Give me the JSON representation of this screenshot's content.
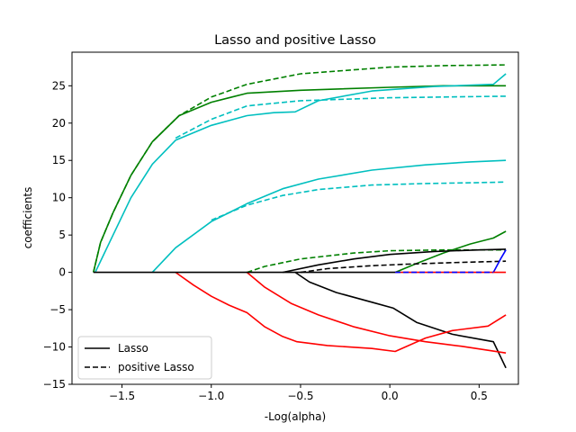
{
  "chart_data": {
    "type": "line",
    "title": "Lasso and positive Lasso",
    "xlabel": "-Log(alpha)",
    "ylabel": "coefficients",
    "xlim": [
      -1.78,
      0.72
    ],
    "ylim": [
      -15,
      29.5
    ],
    "xticks": [
      -1.5,
      -1.0,
      -0.5,
      0.0,
      0.5
    ],
    "xtick_labels": [
      "−1.5",
      "−1.0",
      "−0.5",
      "0.0",
      "0.5"
    ],
    "yticks": [
      -15,
      -10,
      -5,
      0,
      5,
      10,
      15,
      20,
      25
    ],
    "ytick_labels": [
      "−15",
      "−10",
      "−5",
      "0",
      "5",
      "10",
      "15",
      "20",
      "25"
    ],
    "grid": false,
    "legend": {
      "placement": "lower-left",
      "entries": [
        {
          "label": "Lasso",
          "style": "solid",
          "color": "#000000"
        },
        {
          "label": "positive Lasso",
          "style": "dashed",
          "color": "#000000"
        }
      ]
    },
    "series": [
      {
        "name": "lasso-green-top",
        "style": "solid",
        "color": "#008000",
        "points": [
          [
            -1.66,
            0
          ],
          [
            -1.62,
            4
          ],
          [
            -1.55,
            8
          ],
          [
            -1.45,
            13
          ],
          [
            -1.33,
            17.5
          ],
          [
            -1.18,
            21
          ],
          [
            -1.0,
            22.8
          ],
          [
            -0.8,
            24
          ],
          [
            -0.5,
            24.4
          ],
          [
            0,
            24.8
          ],
          [
            0.3,
            25.0
          ],
          [
            0.65,
            25.0
          ]
        ]
      },
      {
        "name": "positive-green-top",
        "style": "dashed",
        "color": "#008000",
        "points": [
          [
            -1.66,
            0
          ],
          [
            -1.62,
            4
          ],
          [
            -1.55,
            8
          ],
          [
            -1.45,
            13
          ],
          [
            -1.33,
            17.5
          ],
          [
            -1.18,
            21
          ],
          [
            -1.0,
            23.5
          ],
          [
            -0.8,
            25.2
          ],
          [
            -0.5,
            26.6
          ],
          [
            0,
            27.5
          ],
          [
            0.3,
            27.7
          ],
          [
            0.65,
            27.8
          ]
        ]
      },
      {
        "name": "lasso-cyan-1",
        "style": "solid",
        "color": "#00BFBF",
        "points": [
          [
            -1.65,
            0
          ],
          [
            -1.55,
            5
          ],
          [
            -1.45,
            10
          ],
          [
            -1.33,
            14.5
          ],
          [
            -1.2,
            17.7
          ],
          [
            -1.0,
            19.7
          ],
          [
            -0.8,
            21
          ],
          [
            -0.65,
            21.4
          ],
          [
            -0.53,
            21.5
          ],
          [
            -0.4,
            23
          ],
          [
            -0.1,
            24.3
          ],
          [
            0.25,
            24.9
          ],
          [
            0.58,
            25.2
          ],
          [
            0.65,
            26.6
          ]
        ]
      },
      {
        "name": "positive-cyan-1",
        "style": "dashed",
        "color": "#00BFBF",
        "points": [
          [
            -1.2,
            18
          ],
          [
            -1.0,
            20.5
          ],
          [
            -0.8,
            22.3
          ],
          [
            -0.5,
            23
          ],
          [
            0,
            23.4
          ],
          [
            0.3,
            23.5
          ],
          [
            0.65,
            23.6
          ]
        ]
      },
      {
        "name": "lasso-cyan-2",
        "style": "solid",
        "color": "#00BFBF",
        "points": [
          [
            -1.33,
            0
          ],
          [
            -1.2,
            3.3
          ],
          [
            -1.0,
            6.8
          ],
          [
            -0.8,
            9.2
          ],
          [
            -0.6,
            11.2
          ],
          [
            -0.4,
            12.5
          ],
          [
            -0.1,
            13.7
          ],
          [
            0.2,
            14.4
          ],
          [
            0.45,
            14.8
          ],
          [
            0.65,
            15.0
          ]
        ]
      },
      {
        "name": "positive-cyan-2",
        "style": "dashed",
        "color": "#00BFBF",
        "points": [
          [
            -1.0,
            7
          ],
          [
            -0.8,
            9
          ],
          [
            -0.6,
            10.3
          ],
          [
            -0.4,
            11.1
          ],
          [
            -0.1,
            11.7
          ],
          [
            0.2,
            11.9
          ],
          [
            0.45,
            12.0
          ],
          [
            0.65,
            12.1
          ]
        ]
      },
      {
        "name": "lasso-green-low",
        "style": "solid",
        "color": "#008000",
        "points": [
          [
            0.03,
            0
          ],
          [
            0.15,
            1.2
          ],
          [
            0.3,
            2.6
          ],
          [
            0.45,
            3.8
          ],
          [
            0.58,
            4.6
          ],
          [
            0.65,
            5.5
          ]
        ]
      },
      {
        "name": "positive-green-low",
        "style": "dashed",
        "color": "#008000",
        "points": [
          [
            -0.8,
            0
          ],
          [
            -0.7,
            0.8
          ],
          [
            -0.5,
            1.8
          ],
          [
            -0.2,
            2.6
          ],
          [
            0,
            2.9
          ],
          [
            0.3,
            3.0
          ],
          [
            0.65,
            3.0
          ]
        ]
      },
      {
        "name": "lasso-black-pos",
        "style": "solid",
        "color": "#000000",
        "points": [
          [
            -0.6,
            0
          ],
          [
            -0.4,
            1.0
          ],
          [
            -0.2,
            1.8
          ],
          [
            0,
            2.4
          ],
          [
            0.25,
            2.8
          ],
          [
            0.5,
            3.0
          ],
          [
            0.65,
            3.1
          ]
        ]
      },
      {
        "name": "positive-black-pos",
        "style": "dashed",
        "color": "#000000",
        "points": [
          [
            -0.5,
            0
          ],
          [
            -0.35,
            0.5
          ],
          [
            -0.1,
            0.9
          ],
          [
            0.1,
            1.1
          ],
          [
            0.35,
            1.3
          ],
          [
            0.65,
            1.5
          ]
        ]
      },
      {
        "name": "lasso-blue",
        "style": "solid",
        "color": "#0000FF",
        "points": [
          [
            0.58,
            0
          ],
          [
            0.62,
            1.8
          ],
          [
            0.65,
            3.0
          ]
        ]
      },
      {
        "name": "lasso-black-neg",
        "style": "solid",
        "color": "#000000",
        "points": [
          [
            -0.53,
            0
          ],
          [
            -0.45,
            -1.3
          ],
          [
            -0.3,
            -2.7
          ],
          [
            -0.1,
            -4.0
          ],
          [
            0.02,
            -4.8
          ],
          [
            0.15,
            -6.7
          ],
          [
            0.35,
            -8.3
          ],
          [
            0.58,
            -9.3
          ],
          [
            0.65,
            -12.8
          ]
        ]
      },
      {
        "name": "lasso-red-1",
        "style": "solid",
        "color": "#FF0000",
        "points": [
          [
            -1.2,
            0
          ],
          [
            -1.1,
            -1.7
          ],
          [
            -1.0,
            -3.2
          ],
          [
            -0.9,
            -4.4
          ],
          [
            -0.8,
            -5.4
          ],
          [
            -0.7,
            -7.3
          ],
          [
            -0.6,
            -8.6
          ],
          [
            -0.52,
            -9.3
          ],
          [
            -0.35,
            -9.8
          ],
          [
            -0.1,
            -10.2
          ],
          [
            0.03,
            -10.6
          ],
          [
            0.2,
            -8.8
          ],
          [
            0.35,
            -7.8
          ],
          [
            0.55,
            -7.2
          ],
          [
            0.65,
            -5.7
          ]
        ]
      },
      {
        "name": "lasso-red-2",
        "style": "solid",
        "color": "#FF0000",
        "points": [
          [
            -0.8,
            0
          ],
          [
            -0.7,
            -2.0
          ],
          [
            -0.55,
            -4.2
          ],
          [
            -0.4,
            -5.7
          ],
          [
            -0.2,
            -7.3
          ],
          [
            0,
            -8.5
          ],
          [
            0.2,
            -9.3
          ],
          [
            0.4,
            -9.9
          ],
          [
            0.65,
            -10.8
          ]
        ]
      },
      {
        "name": "zero-red",
        "style": "solid",
        "color": "#FF0000",
        "points": [
          [
            0.03,
            0
          ],
          [
            0.65,
            0
          ]
        ]
      },
      {
        "name": "zero-black",
        "style": "solid",
        "color": "#000000",
        "points": [
          [
            -1.66,
            0
          ],
          [
            0.03,
            0
          ]
        ]
      },
      {
        "name": "zero-blue-dashed",
        "style": "dashed",
        "color": "#0000FF",
        "points": [
          [
            0.03,
            0
          ],
          [
            0.58,
            0
          ]
        ]
      }
    ]
  }
}
